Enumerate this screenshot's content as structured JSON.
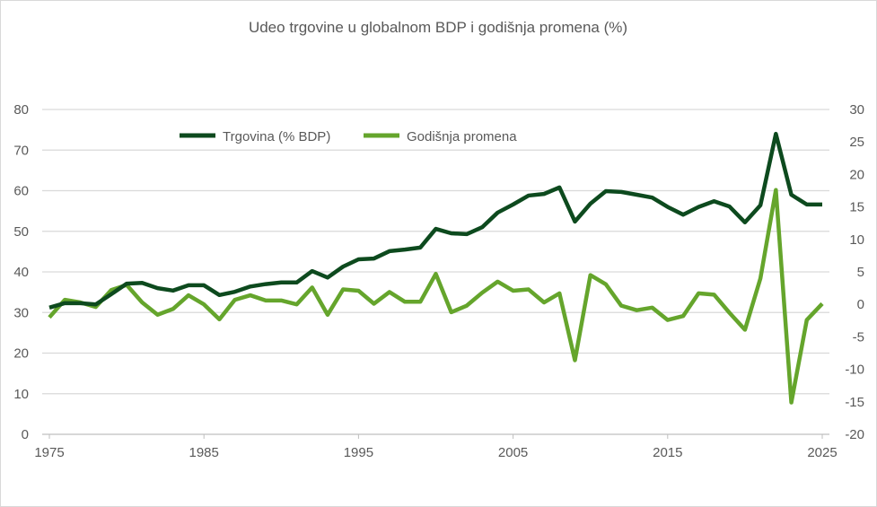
{
  "chart_data": {
    "type": "line",
    "title": "Udeo trgovine  u globalnom  BDP i godišnja  promena  (%)",
    "x": [
      1975,
      1976,
      1977,
      1978,
      1979,
      1980,
      1981,
      1982,
      1983,
      1984,
      1985,
      1986,
      1987,
      1988,
      1989,
      1990,
      1991,
      1992,
      1993,
      1994,
      1995,
      1996,
      1997,
      1998,
      1999,
      2000,
      2001,
      2002,
      2003,
      2004,
      2005,
      2006,
      2007,
      2008,
      2009,
      2010,
      2011,
      2012,
      2013,
      2014,
      2015,
      2016,
      2017,
      2018,
      2019,
      2020,
      2021,
      2022,
      2023,
      2024,
      2025
    ],
    "xticks": [
      "1975",
      "1985",
      "1995",
      "2005",
      "2015",
      "2025"
    ],
    "y_left": {
      "ylim": [
        0,
        80
      ],
      "ticks": [
        "0",
        "10",
        "20",
        "30",
        "40",
        "50",
        "60",
        "70",
        "80"
      ]
    },
    "y_right": {
      "ylim": [
        -20,
        30
      ],
      "ticks": [
        "-20",
        "-15",
        "-10",
        "-5",
        "0",
        "5",
        "10",
        "15",
        "20",
        "25",
        "30"
      ]
    },
    "grid": true,
    "legend_position": "top-left",
    "series": [
      {
        "name": "Trgovina (% BDP)",
        "axis": "left",
        "color": "#0d4a1e",
        "values": [
          31.2,
          32.3,
          32.3,
          32.0,
          34.5,
          37.1,
          37.3,
          36.0,
          35.4,
          36.7,
          36.7,
          34.3,
          35.1,
          36.4,
          37.0,
          37.4,
          37.4,
          40.2,
          38.6,
          41.3,
          43.1,
          43.3,
          45.1,
          45.5,
          46.0,
          50.6,
          49.5,
          49.3,
          51.0,
          54.6,
          56.6,
          58.8,
          59.2,
          60.8,
          52.4,
          56.8,
          59.9,
          59.7,
          59.0,
          58.3,
          56.0,
          54.1,
          56.0,
          57.4,
          56.1,
          52.2,
          56.4,
          74.0,
          59.0,
          56.6,
          56.6
        ]
      },
      {
        "name": "Godišnja promena",
        "axis": "right",
        "color": "#65a52c",
        "values": [
          -2.0,
          0.7,
          0.3,
          -0.4,
          2.2,
          3.0,
          0.3,
          -1.6,
          -0.7,
          1.4,
          0.0,
          -2.3,
          0.7,
          1.4,
          0.6,
          0.6,
          0.0,
          2.6,
          -1.6,
          2.3,
          2.1,
          0.1,
          1.9,
          0.4,
          0.4,
          4.7,
          -1.2,
          -0.2,
          1.8,
          3.5,
          2.1,
          2.3,
          0.3,
          1.7,
          -8.6,
          4.5,
          3.1,
          -0.2,
          -0.9,
          -0.5,
          -2.4,
          -1.8,
          1.7,
          1.5,
          -1.3,
          -3.9,
          4.0,
          17.6,
          -15.1,
          -2.4,
          0.1
        ]
      }
    ]
  }
}
